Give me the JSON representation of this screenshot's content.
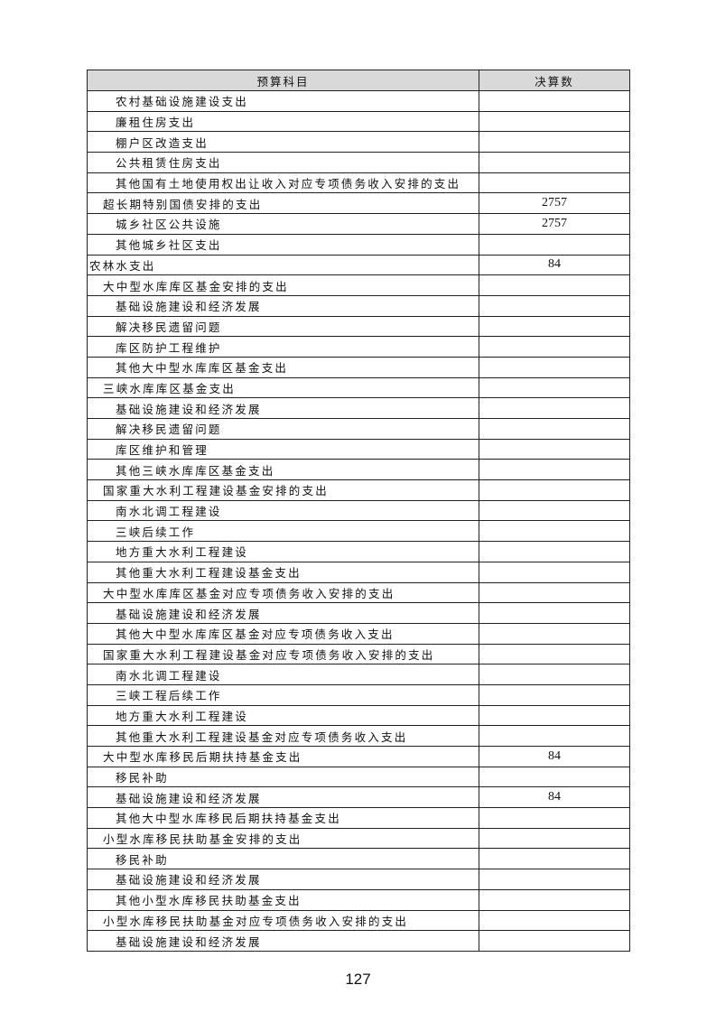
{
  "table": {
    "headers": [
      "预算科目",
      "决算数"
    ],
    "rows": [
      {
        "name": "农村基础设施建设支出",
        "level": 2,
        "value": ""
      },
      {
        "name": "廉租住房支出",
        "level": 2,
        "value": ""
      },
      {
        "name": "棚户区改造支出",
        "level": 2,
        "value": ""
      },
      {
        "name": "公共租赁住房支出",
        "level": 2,
        "value": ""
      },
      {
        "name": "其他国有土地使用权出让收入对应专项债务收入安排的支出",
        "level": 2,
        "value": ""
      },
      {
        "name": "超长期特别国债安排的支出",
        "level": 1,
        "value": "2757"
      },
      {
        "name": "城乡社区公共设施",
        "level": 2,
        "value": "2757"
      },
      {
        "name": "其他城乡社区支出",
        "level": 2,
        "value": ""
      },
      {
        "name": "农林水支出",
        "level": 0,
        "value": "84"
      },
      {
        "name": "大中型水库库区基金安排的支出",
        "level": 1,
        "value": ""
      },
      {
        "name": "基础设施建设和经济发展",
        "level": 2,
        "value": ""
      },
      {
        "name": "解决移民遗留问题",
        "level": 2,
        "value": ""
      },
      {
        "name": "库区防护工程维护",
        "level": 2,
        "value": ""
      },
      {
        "name": "其他大中型水库库区基金支出",
        "level": 2,
        "value": ""
      },
      {
        "name": "三峡水库库区基金支出",
        "level": 1,
        "value": ""
      },
      {
        "name": "基础设施建设和经济发展",
        "level": 2,
        "value": ""
      },
      {
        "name": "解决移民遗留问题",
        "level": 2,
        "value": ""
      },
      {
        "name": "库区维护和管理",
        "level": 2,
        "value": ""
      },
      {
        "name": "其他三峡水库库区基金支出",
        "level": 2,
        "value": ""
      },
      {
        "name": "国家重大水利工程建设基金安排的支出",
        "level": 1,
        "value": ""
      },
      {
        "name": "南水北调工程建设",
        "level": 2,
        "value": ""
      },
      {
        "name": "三峡后续工作",
        "level": 2,
        "value": ""
      },
      {
        "name": "地方重大水利工程建设",
        "level": 2,
        "value": ""
      },
      {
        "name": "其他重大水利工程建设基金支出",
        "level": 2,
        "value": ""
      },
      {
        "name": "大中型水库库区基金对应专项债务收入安排的支出",
        "level": 1,
        "value": ""
      },
      {
        "name": "基础设施建设和经济发展",
        "level": 2,
        "value": ""
      },
      {
        "name": "其他大中型水库库区基金对应专项债务收入支出",
        "level": 2,
        "value": ""
      },
      {
        "name": "国家重大水利工程建设基金对应专项债务收入安排的支出",
        "level": 1,
        "value": ""
      },
      {
        "name": "南水北调工程建设",
        "level": 2,
        "value": ""
      },
      {
        "name": "三峡工程后续工作",
        "level": 2,
        "value": ""
      },
      {
        "name": "地方重大水利工程建设",
        "level": 2,
        "value": ""
      },
      {
        "name": "其他重大水利工程建设基金对应专项债务收入支出",
        "level": 2,
        "value": ""
      },
      {
        "name": "大中型水库移民后期扶持基金支出",
        "level": 1,
        "value": "84"
      },
      {
        "name": "移民补助",
        "level": 2,
        "value": ""
      },
      {
        "name": "基础设施建设和经济发展",
        "level": 2,
        "value": "84"
      },
      {
        "name": "其他大中型水库移民后期扶持基金支出",
        "level": 2,
        "value": ""
      },
      {
        "name": "小型水库移民扶助基金安排的支出",
        "level": 1,
        "value": ""
      },
      {
        "name": "移民补助",
        "level": 2,
        "value": ""
      },
      {
        "name": "基础设施建设和经济发展",
        "level": 2,
        "value": ""
      },
      {
        "name": "其他小型水库移民扶助基金支出",
        "level": 2,
        "value": ""
      },
      {
        "name": "小型水库移民扶助基金对应专项债务收入安排的支出",
        "level": 1,
        "value": ""
      },
      {
        "name": "基础设施建设和经济发展",
        "level": 2,
        "value": ""
      }
    ]
  },
  "page_number": "127"
}
